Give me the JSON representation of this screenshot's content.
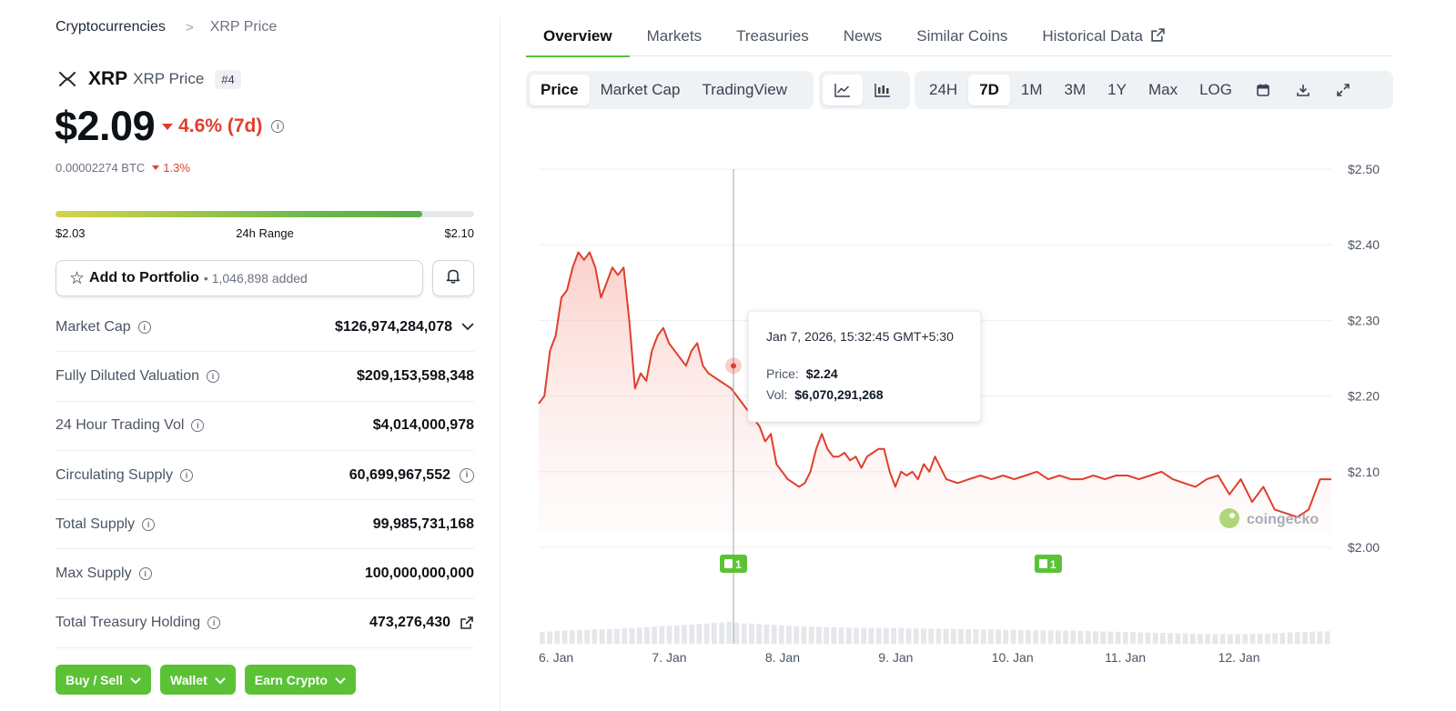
{
  "breadcrumb": {
    "parent": "Cryptocurrencies",
    "separator": ">",
    "current": "XRP Price"
  },
  "coin": {
    "symbol": "XRP",
    "name": "XRP Price",
    "rank": "#4",
    "price": "$2.09",
    "change_7d": "4.6% (7d)",
    "btc_price": "0.00002274 BTC",
    "btc_change": "1.3%",
    "range": {
      "low": "$2.03",
      "label": "24h Range",
      "high": "$2.10",
      "position": 0.875
    }
  },
  "portfolio": {
    "label": "Add to Portfolio",
    "added": "• 1,046,898 added"
  },
  "stats": [
    {
      "label": "Market Cap",
      "value": "$126,974,284,078",
      "suffix": "chevron-down-icon"
    },
    {
      "label": "Fully Diluted Valuation",
      "value": "$209,153,598,348"
    },
    {
      "label": "24 Hour Trading Vol",
      "value": "$4,014,000,978"
    },
    {
      "label": "Circulating Supply",
      "value": "60,699,967,552",
      "suffix": "info-icon"
    },
    {
      "label": "Total Supply",
      "value": "99,985,731,168"
    },
    {
      "label": "Max Supply",
      "value": "100,000,000,000"
    },
    {
      "label": "Total Treasury Holding",
      "value": "473,276,430",
      "suffix": "external-link-icon"
    }
  ],
  "actions": [
    "Buy / Sell",
    "Wallet",
    "Earn Crypto"
  ],
  "tabs": [
    "Overview",
    "Markets",
    "Treasuries",
    "News",
    "Similar Coins",
    "Historical Data"
  ],
  "toolbar": {
    "data_types": [
      "Price",
      "Market Cap",
      "TradingView"
    ],
    "chart_types": [
      "line-chart-icon",
      "candlestick-icon"
    ],
    "ranges": [
      "24H",
      "7D",
      "1M",
      "3M",
      "1Y",
      "Max",
      "LOG"
    ],
    "tools": [
      "calendar-icon",
      "download-icon",
      "expand-icon"
    ]
  },
  "tooltip": {
    "date": "Jan 7, 2026, 15:32:45 GMT+5:30",
    "price_label": "Price:",
    "price": "$2.24",
    "vol_label": "Vol:",
    "vol": "$6,070,291,268"
  },
  "watermark": "coingecko",
  "event_markers": [
    "1",
    "1"
  ],
  "colors": {
    "accent": "#5bc236",
    "down": "#e03e2d",
    "line": "#e03e2d"
  },
  "chart_data": {
    "type": "area",
    "title": "",
    "ylabel": "",
    "ylim": [
      2.0,
      2.5
    ],
    "yticks": [
      "$2.00",
      "$2.10",
      "$2.20",
      "$2.30",
      "$2.40",
      "$2.50"
    ],
    "xticks": [
      "6. Jan",
      "7. Jan",
      "8. Jan",
      "9. Jan",
      "10. Jan",
      "11. Jan",
      "12. Jan"
    ],
    "xlim": [
      0,
      7.0
    ],
    "series": [
      {
        "x": [
          0.0,
          0.05,
          0.1,
          0.15,
          0.2,
          0.25,
          0.3,
          0.35,
          0.4,
          0.45,
          0.5,
          0.55,
          0.6,
          0.65,
          0.7,
          0.75,
          0.8,
          0.85,
          0.9,
          0.95,
          1.0,
          1.05,
          1.1,
          1.15,
          1.2,
          1.25,
          1.3,
          1.35,
          1.4,
          1.45,
          1.5,
          1.55,
          1.6,
          1.65,
          1.7,
          1.75,
          1.8,
          1.85,
          1.9,
          1.95,
          2.0,
          2.05,
          2.1,
          2.15,
          2.2,
          2.25,
          2.3,
          2.35,
          2.4,
          2.45,
          2.5,
          2.55,
          2.6,
          2.65,
          2.7,
          2.75,
          2.8,
          2.85,
          2.9,
          2.95,
          3.0,
          3.05,
          3.1,
          3.15,
          3.2,
          3.25,
          3.3,
          3.35,
          3.4,
          3.45,
          3.5,
          3.6,
          3.7,
          3.8,
          3.9,
          4.0,
          4.1,
          4.2,
          4.3,
          4.4,
          4.5,
          4.6,
          4.7,
          4.8,
          4.9,
          5.0,
          5.1,
          5.2,
          5.3,
          5.4,
          5.5,
          5.6,
          5.7,
          5.8,
          5.9,
          6.0,
          6.1,
          6.2,
          6.3,
          6.4,
          6.5,
          6.6,
          6.7,
          6.8,
          6.9,
          7.0
        ],
        "y": [
          2.19,
          2.2,
          2.26,
          2.28,
          2.33,
          2.34,
          2.37,
          2.39,
          2.38,
          2.39,
          2.37,
          2.33,
          2.35,
          2.37,
          2.36,
          2.37,
          2.3,
          2.21,
          2.23,
          2.22,
          2.26,
          2.28,
          2.29,
          2.27,
          2.26,
          2.25,
          2.24,
          2.26,
          2.27,
          2.24,
          2.23,
          2.225,
          2.22,
          2.215,
          2.21,
          2.2,
          2.19,
          2.18,
          2.17,
          2.16,
          2.14,
          2.15,
          2.11,
          2.1,
          2.09,
          2.085,
          2.08,
          2.085,
          2.1,
          2.13,
          2.15,
          2.13,
          2.12,
          2.12,
          2.125,
          2.115,
          2.12,
          2.105,
          2.12,
          2.125,
          2.13,
          2.13,
          2.1,
          2.08,
          2.1,
          2.095,
          2.1,
          2.09,
          2.11,
          2.1,
          2.12,
          2.09,
          2.085,
          2.09,
          2.095,
          2.09,
          2.095,
          2.09,
          2.095,
          2.1,
          2.09,
          2.095,
          2.09,
          2.09,
          2.095,
          2.09,
          2.095,
          2.095,
          2.09,
          2.095,
          2.1,
          2.09,
          2.085,
          2.08,
          2.09,
          2.095,
          2.07,
          2.09,
          2.06,
          2.08,
          2.05,
          2.045,
          2.04,
          2.05,
          2.09,
          2.09
        ]
      }
    ],
    "volume": [
      0.55,
      0.56,
      0.58,
      0.6,
      0.62,
      0.63,
      0.64,
      0.65,
      0.66,
      0.67,
      0.68,
      0.7,
      0.72,
      0.74,
      0.76,
      0.78,
      0.8,
      0.82,
      0.84,
      0.86,
      0.88,
      0.9,
      0.92,
      0.95,
      0.97,
      1.0,
      0.96,
      0.93,
      0.92,
      0.9,
      0.88,
      0.86,
      0.84,
      0.82,
      0.8,
      0.79,
      0.78,
      0.77,
      0.76,
      0.75,
      0.74,
      0.74,
      0.73,
      0.73,
      0.72,
      0.72,
      0.72,
      0.71,
      0.71,
      0.7,
      0.7,
      0.7,
      0.69,
      0.69,
      0.68,
      0.68,
      0.67,
      0.67,
      0.66,
      0.66,
      0.65,
      0.65,
      0.64,
      0.64,
      0.63,
      0.63,
      0.62,
      0.62,
      0.61,
      0.61,
      0.6,
      0.6,
      0.59,
      0.58,
      0.57,
      0.56,
      0.55,
      0.55,
      0.54,
      0.53,
      0.52,
      0.51,
      0.5,
      0.5,
      0.49,
      0.48,
      0.47,
      0.46,
      0.45,
      0.45,
      0.44,
      0.44,
      0.43,
      0.43,
      0.44,
      0.45,
      0.46,
      0.47,
      0.48,
      0.5,
      0.52,
      0.53,
      0.54,
      0.55,
      0.56,
      0.57
    ],
    "hover": {
      "x": 1.72,
      "y": 2.24
    },
    "event_x": [
      1.72,
      4.5
    ]
  }
}
